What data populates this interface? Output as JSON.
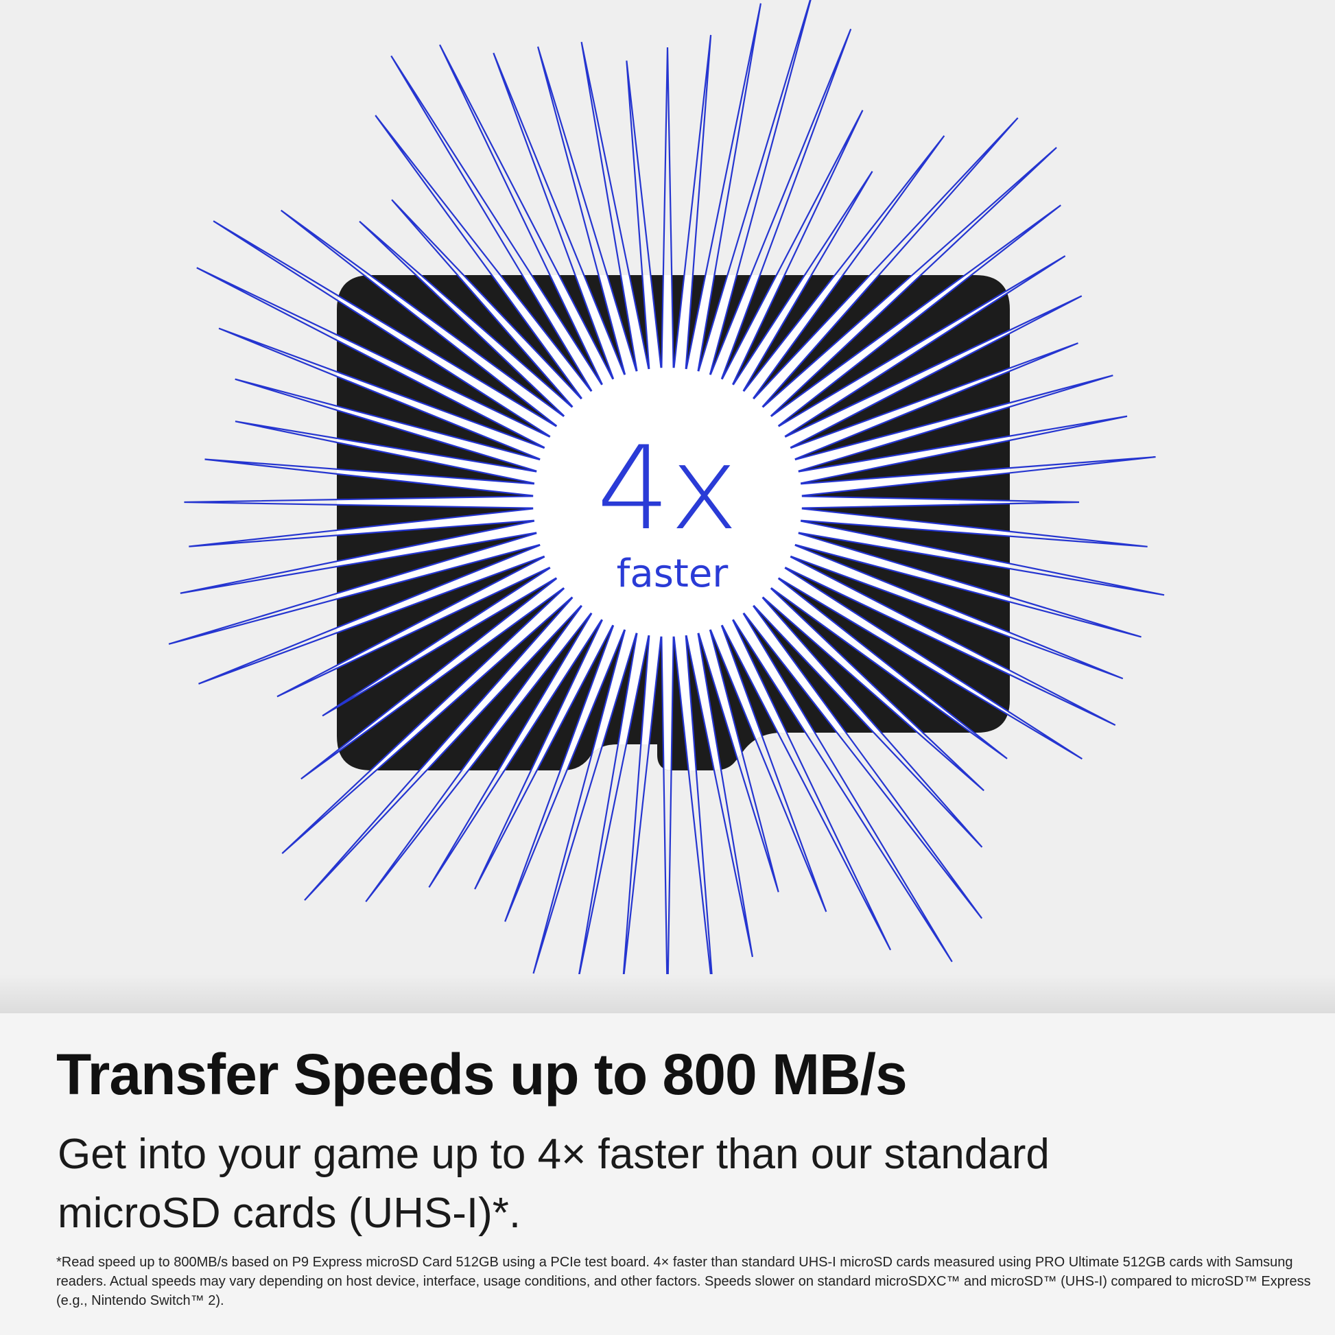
{
  "burst": {
    "value_text": "4x",
    "caption": "faster"
  },
  "headline": "Transfer Speeds up to 800 MB/s",
  "subheadline": "Get into your game up to 4× faster than our standard microSD cards (UHS-I)*.",
  "footnote": "*Read speed up to 800MB/s based on P9 Express microSD Card 512GB using a PCIe test board. 4× faster than standard UHS-I microSD cards measured using PRO Ultimate 512GB cards with Samsung readers. Actual speeds may vary depending on host device, interface, usage conditions, and other factors. Speeds slower on standard microSDXC™ and microSD™ (UHS-I) compared to microSD™ Express (e.g., Nintendo Switch™ 2)."
}
